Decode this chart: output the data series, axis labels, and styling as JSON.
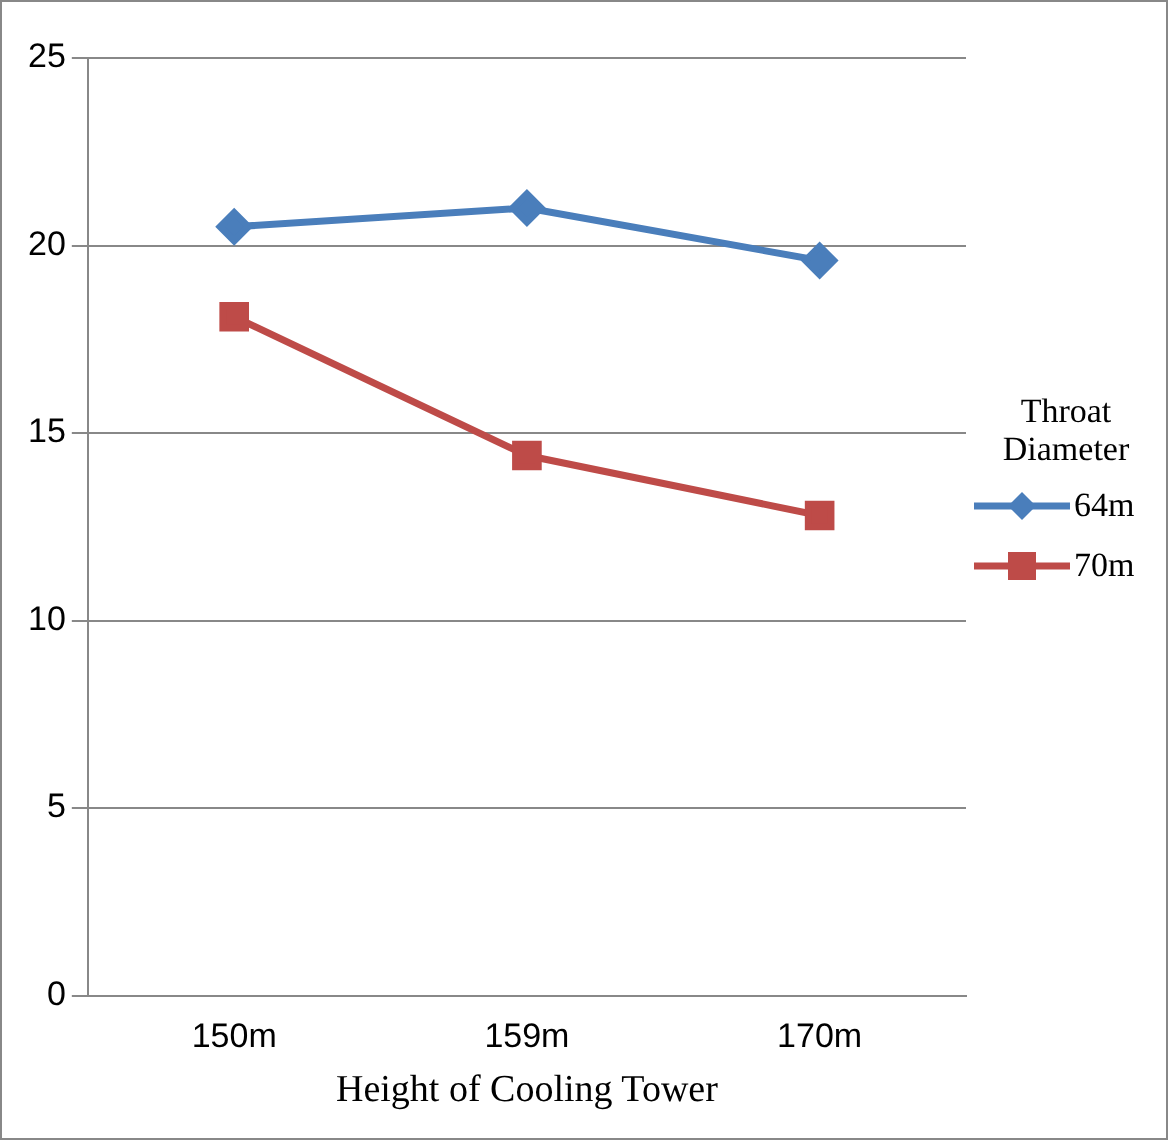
{
  "chart_data": {
    "type": "line",
    "xlabel": "Height of Cooling Tower",
    "legend_title": "Throat Diameter",
    "categories": [
      "150m",
      "159m",
      "170m"
    ],
    "series": [
      {
        "name": "64m",
        "color": "#4a7ebb",
        "marker": "diamond",
        "values": [
          20.5,
          21.0,
          19.6
        ]
      },
      {
        "name": "70m",
        "color": "#be4b48",
        "marker": "square",
        "values": [
          18.1,
          14.4,
          12.8
        ]
      }
    ],
    "ylim": [
      0,
      25
    ],
    "yticks": [
      0,
      5,
      10,
      15,
      20,
      25
    ],
    "grid": "y",
    "legend": "right"
  }
}
